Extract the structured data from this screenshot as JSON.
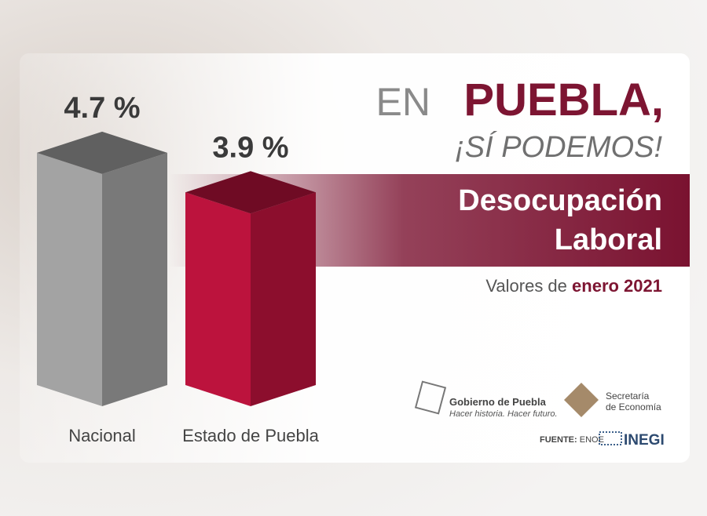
{
  "chart_data": {
    "type": "bar3d",
    "title_prefix": "EN",
    "title": "PUEBLA,",
    "subtitle": "¡SÍ PODEMOS!",
    "banner": [
      "Desocupación",
      "Laboral"
    ],
    "note": [
      "Valores de",
      "enero 2021"
    ],
    "categories": [
      "Nacional",
      "Estado de Puebla"
    ],
    "values": [
      4.7,
      3.9
    ],
    "value_labels": [
      "4.7 %",
      "3.9 %"
    ],
    "colors": [
      "#9b9b9b",
      "#b3123a"
    ],
    "logos": {
      "gobierno": [
        "Gobierno de Puebla",
        "Hacer historia. Hacer futuro."
      ],
      "secretaria": [
        "Secretaría",
        "de Economía"
      ],
      "fuente": [
        "FUENTE:",
        "ENOE"
      ],
      "inegi": "INEGI"
    }
  }
}
